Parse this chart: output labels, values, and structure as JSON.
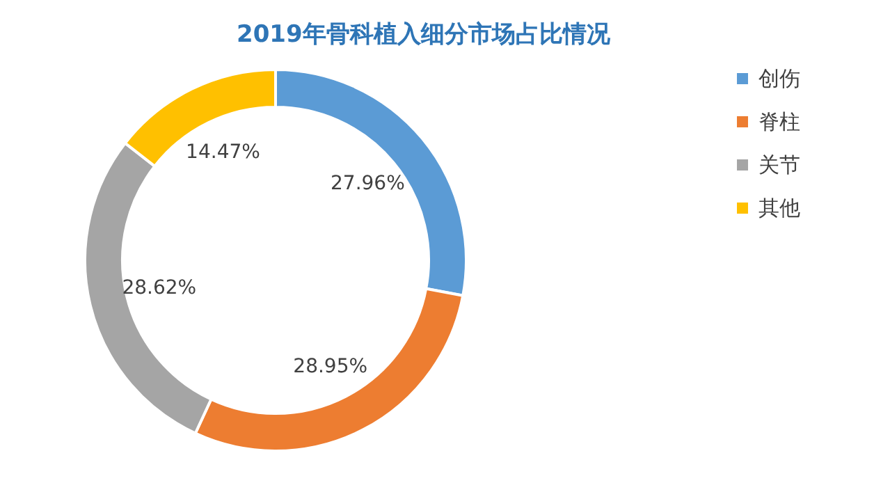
{
  "chart_data": {
    "type": "donut",
    "title": "2019年骨科植入细分市场占比情况",
    "categories": [
      "创伤",
      "脊柱",
      "关节",
      "其他"
    ],
    "values": [
      27.96,
      28.95,
      28.62,
      14.47
    ],
    "colors": [
      "#5b9bd5",
      "#ed7d31",
      "#a5a5a5",
      "#ffc000"
    ],
    "value_labels": [
      "27.96%",
      "28.95%",
      "28.62%",
      "14.47%"
    ],
    "legend": "right"
  }
}
